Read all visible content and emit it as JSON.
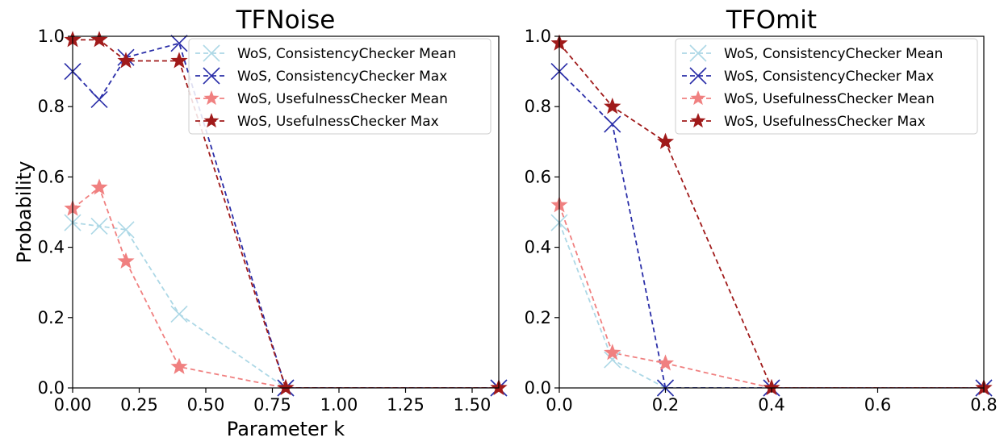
{
  "chart_data": [
    {
      "type": "line",
      "title": "TFNoise",
      "xlabel": "Parameter k",
      "ylabel": "Probability",
      "xlim": [
        0,
        1.6
      ],
      "ylim": [
        0,
        1.0
      ],
      "xticks": [
        0.0,
        0.25,
        0.5,
        0.75,
        1.0,
        1.25,
        1.5
      ],
      "xtick_labels": [
        "0.00",
        "0.25",
        "0.50",
        "0.75",
        "1.00",
        "1.25",
        "1.50"
      ],
      "yticks": [
        0.0,
        0.2,
        0.4,
        0.6,
        0.8,
        1.0
      ],
      "ytick_labels": [
        "0.0",
        "0.2",
        "0.4",
        "0.6",
        "0.8",
        "1.0"
      ],
      "grid": false,
      "legend": "top-right",
      "series": [
        {
          "name": "WoS, ConsistencyChecker Mean",
          "color": "#add8e6",
          "marker": "x",
          "x": [
            0.0,
            0.1,
            0.2,
            0.4,
            0.8,
            1.6
          ],
          "y": [
            0.47,
            0.46,
            0.45,
            0.21,
            0.0,
            0.0
          ]
        },
        {
          "name": "WoS, ConsistencyChecker Max",
          "color": "#2a2ea8",
          "marker": "x",
          "x": [
            0.0,
            0.1,
            0.2,
            0.4,
            0.8,
            1.6
          ],
          "y": [
            0.9,
            0.82,
            0.94,
            0.98,
            0.0,
            0.0
          ]
        },
        {
          "name": "WoS, UsefulnessChecker Mean",
          "color": "#f08080",
          "marker": "star",
          "x": [
            0.0,
            0.1,
            0.2,
            0.4,
            0.8,
            1.6
          ],
          "y": [
            0.51,
            0.57,
            0.36,
            0.06,
            0.0,
            0.0
          ]
        },
        {
          "name": "WoS, UsefulnessChecker Max",
          "color": "#a01a1a",
          "marker": "star",
          "x": [
            0.0,
            0.1,
            0.2,
            0.4,
            0.8,
            1.6
          ],
          "y": [
            0.99,
            0.99,
            0.93,
            0.93,
            0.0,
            0.0
          ]
        }
      ]
    },
    {
      "type": "line",
      "title": "TFOmit",
      "xlabel": "",
      "ylabel": "",
      "xlim": [
        0,
        0.8
      ],
      "ylim": [
        0,
        1.0
      ],
      "xticks": [
        0.0,
        0.2,
        0.4,
        0.6,
        0.8
      ],
      "xtick_labels": [
        "0.0",
        "0.2",
        "0.4",
        "0.6",
        "0.8"
      ],
      "yticks": [
        0.0,
        0.2,
        0.4,
        0.6,
        0.8,
        1.0
      ],
      "ytick_labels": [
        "0.0",
        "0.2",
        "0.4",
        "0.6",
        "0.8",
        "1.0"
      ],
      "grid": false,
      "legend": "top-right",
      "series": [
        {
          "name": "WoS, ConsistencyChecker Mean",
          "color": "#add8e6",
          "marker": "x",
          "x": [
            0.0,
            0.1,
            0.2,
            0.4,
            0.8
          ],
          "y": [
            0.47,
            0.08,
            0.0,
            0.0,
            0.0
          ]
        },
        {
          "name": "WoS, ConsistencyChecker Max",
          "color": "#2a2ea8",
          "marker": "x",
          "x": [
            0.0,
            0.1,
            0.2,
            0.4,
            0.8
          ],
          "y": [
            0.9,
            0.75,
            0.0,
            0.0,
            0.0
          ]
        },
        {
          "name": "WoS, UsefulnessChecker Mean",
          "color": "#f08080",
          "marker": "star",
          "x": [
            0.0,
            0.1,
            0.2,
            0.4,
            0.8
          ],
          "y": [
            0.52,
            0.1,
            0.07,
            0.0,
            0.0
          ]
        },
        {
          "name": "WoS, UsefulnessChecker Max",
          "color": "#a01a1a",
          "marker": "star",
          "x": [
            0.0,
            0.1,
            0.2,
            0.4,
            0.8
          ],
          "y": [
            0.98,
            0.8,
            0.7,
            0.0,
            0.0
          ]
        }
      ]
    }
  ]
}
